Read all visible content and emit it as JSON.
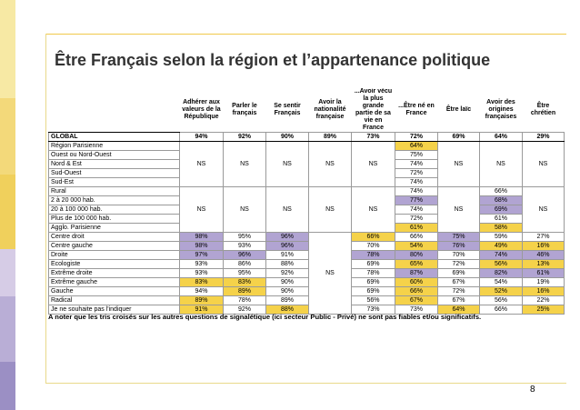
{
  "title": "Être Français selon la région et l’appartenance politique",
  "headers": [
    "",
    "Adhérer aux valeurs de la République",
    "Parler le français",
    "Se sentir Français",
    "Avoir la nationalité française",
    "...Avoir vécu la plus grande partie de sa vie en France",
    "...Être né en France",
    "Être laïc",
    "Avoir des origines françaises",
    "Être chrétien"
  ],
  "global": {
    "label": "GLOBAL",
    "values": [
      "94%",
      "92%",
      "90%",
      "89%",
      "73%",
      "72%",
      "69%",
      "64%",
      "29%"
    ]
  },
  "region_rows": [
    {
      "label": "Région Parisienne",
      "col6": "64%"
    },
    {
      "label": "Ouest ou Nord-Ouest",
      "col6": "75%"
    },
    {
      "label": "Nord & Est",
      "col6": "74%"
    },
    {
      "label": "Sud-Ouest",
      "col6": "72%"
    },
    {
      "label": "Sud-Est",
      "col6": "74%"
    }
  ],
  "size_rows": [
    {
      "label": "Rural",
      "col6": "74%",
      "col8": "66%"
    },
    {
      "label": "2 à 20 000 hab.",
      "col6": "77%",
      "col8": "68%"
    },
    {
      "label": "20 à 100 000 hab.",
      "col6": "74%",
      "col8": "69%"
    },
    {
      "label": "Plus de 100 000 hab.",
      "col6": "72%",
      "col8": "61%"
    },
    {
      "label": "Agglo. Parisienne",
      "col6": "61%",
      "col8": "58%"
    }
  ],
  "ns": "NS",
  "political_rows": [
    {
      "label": "Centre droit",
      "values": [
        "98%",
        "95%",
        "96%",
        "66%",
        "66%",
        "75%",
        "59%",
        "27%"
      ]
    },
    {
      "label": "Centre gauche",
      "values": [
        "98%",
        "93%",
        "96%",
        "70%",
        "54%",
        "76%",
        "49%",
        "16%"
      ]
    },
    {
      "label": "Droite",
      "values": [
        "97%",
        "96%",
        "91%",
        "78%",
        "80%",
        "70%",
        "74%",
        "46%"
      ]
    },
    {
      "label": "Ecologiste",
      "values": [
        "93%",
        "86%",
        "88%",
        "69%",
        "65%",
        "72%",
        "56%",
        "13%"
      ]
    },
    {
      "label": "Extrême droite",
      "values": [
        "93%",
        "95%",
        "92%",
        "78%",
        "87%",
        "69%",
        "82%",
        "61%"
      ]
    },
    {
      "label": "Extrême gauche",
      "values": [
        "83%",
        "83%",
        "90%",
        "69%",
        "60%",
        "67%",
        "54%",
        "19%"
      ]
    },
    {
      "label": "Gauche",
      "values": [
        "94%",
        "89%",
        "90%",
        "69%",
        "66%",
        "72%",
        "52%",
        "16%"
      ]
    },
    {
      "label": "Radical",
      "values": [
        "89%",
        "78%",
        "89%",
        "56%",
        "67%",
        "67%",
        "56%",
        "22%"
      ]
    },
    {
      "label": "Je ne souhaite pas l'indiquer",
      "values": [
        "91%",
        "92%",
        "88%",
        "73%",
        "73%",
        "64%",
        "66%",
        "25%"
      ]
    }
  ],
  "note": "A noter que les tris croisés sur les autres questions de signalétique (ici secteur Public - Privé) ne sont pas fiables et/ou significatifs.",
  "page_number": "8",
  "colors": {
    "highlight_yellow": "#f5d24a",
    "highlight_purple": "#b1a4d2",
    "bar_top": "#f7e9a4",
    "bar_bottom": "#9b8fc4"
  }
}
